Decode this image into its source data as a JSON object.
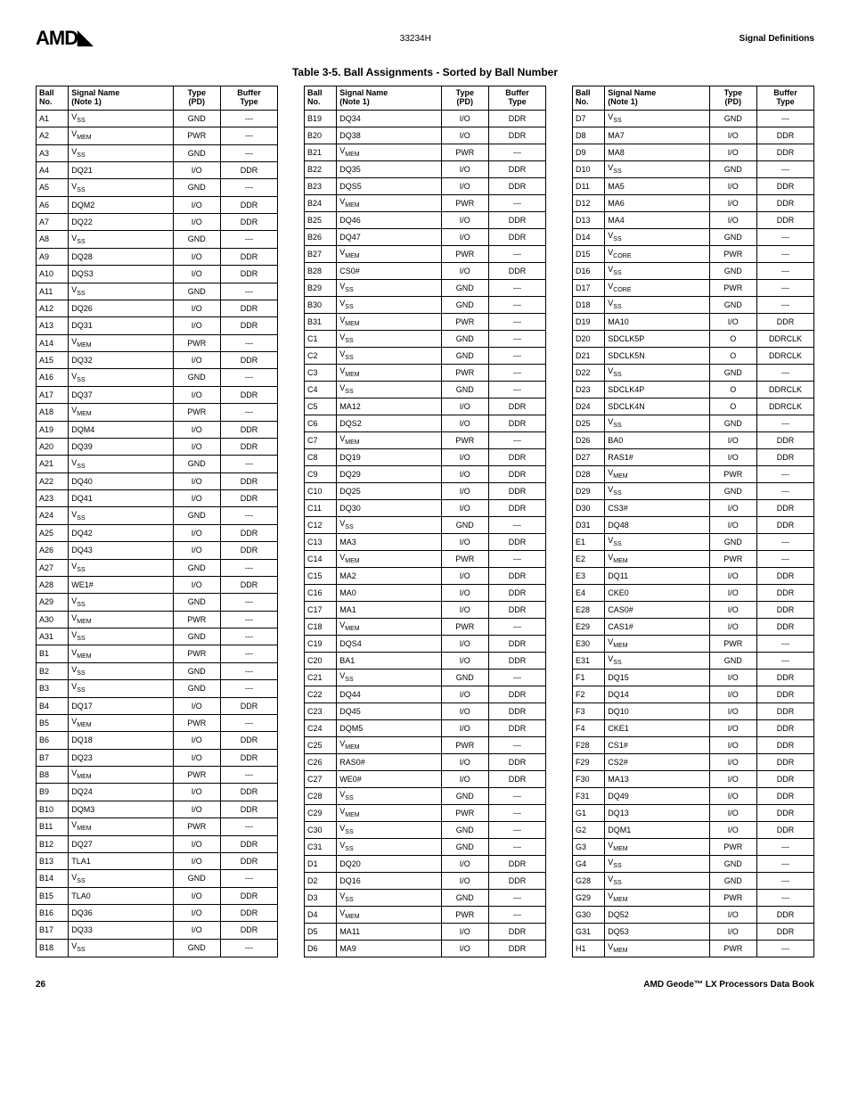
{
  "header": {
    "logo": "AMD",
    "docnum": "33234H",
    "section": "Signal Definitions"
  },
  "title": "Table 3-5.  Ball Assignments - Sorted by Ball Number",
  "columns": [
    "Ball No.",
    "Signal Name (Note 1)",
    "Type (PD)",
    "Buffer Type"
  ],
  "footer": {
    "page": "26",
    "book": "AMD Geode™ LX Processors Data Book"
  },
  "t1": [
    [
      "A1",
      "V_SS",
      "GND",
      "---"
    ],
    [
      "A2",
      "V_MEM",
      "PWR",
      "---"
    ],
    [
      "A3",
      "V_SS",
      "GND",
      "---"
    ],
    [
      "A4",
      "DQ21",
      "I/O",
      "DDR"
    ],
    [
      "A5",
      "V_SS",
      "GND",
      "---"
    ],
    [
      "A6",
      "DQM2",
      "I/O",
      "DDR"
    ],
    [
      "A7",
      "DQ22",
      "I/O",
      "DDR"
    ],
    [
      "A8",
      "V_SS",
      "GND",
      "---"
    ],
    [
      "A9",
      "DQ28",
      "I/O",
      "DDR"
    ],
    [
      "A10",
      "DQS3",
      "I/O",
      "DDR"
    ],
    [
      "A11",
      "V_SS",
      "GND",
      "---"
    ],
    [
      "A12",
      "DQ26",
      "I/O",
      "DDR"
    ],
    [
      "A13",
      "DQ31",
      "I/O",
      "DDR"
    ],
    [
      "A14",
      "V_MEM",
      "PWR",
      "---"
    ],
    [
      "A15",
      "DQ32",
      "I/O",
      "DDR"
    ],
    [
      "A16",
      "V_SS",
      "GND",
      "---"
    ],
    [
      "A17",
      "DQ37",
      "I/O",
      "DDR"
    ],
    [
      "A18",
      "V_MEM",
      "PWR",
      "---"
    ],
    [
      "A19",
      "DQM4",
      "I/O",
      "DDR"
    ],
    [
      "A20",
      "DQ39",
      "I/O",
      "DDR"
    ],
    [
      "A21",
      "V_SS",
      "GND",
      "---"
    ],
    [
      "A22",
      "DQ40",
      "I/O",
      "DDR"
    ],
    [
      "A23",
      "DQ41",
      "I/O",
      "DDR"
    ],
    [
      "A24",
      "V_SS",
      "GND",
      "---"
    ],
    [
      "A25",
      "DQ42",
      "I/O",
      "DDR"
    ],
    [
      "A26",
      "DQ43",
      "I/O",
      "DDR"
    ],
    [
      "A27",
      "V_SS",
      "GND",
      "---"
    ],
    [
      "A28",
      "WE1#",
      "I/O",
      "DDR"
    ],
    [
      "A29",
      "V_SS",
      "GND",
      "---"
    ],
    [
      "A30",
      "V_MEM",
      "PWR",
      "---"
    ],
    [
      "A31",
      "V_SS",
      "GND",
      "---"
    ],
    [
      "B1",
      "V_MEM",
      "PWR",
      "---"
    ],
    [
      "B2",
      "V_SS",
      "GND",
      "---"
    ],
    [
      "B3",
      "V_SS",
      "GND",
      "---"
    ],
    [
      "B4",
      "DQ17",
      "I/O",
      "DDR"
    ],
    [
      "B5",
      "V_MEM",
      "PWR",
      "---"
    ],
    [
      "B6",
      "DQ18",
      "I/O",
      "DDR"
    ],
    [
      "B7",
      "DQ23",
      "I/O",
      "DDR"
    ],
    [
      "B8",
      "V_MEM",
      "PWR",
      "---"
    ],
    [
      "B9",
      "DQ24",
      "I/O",
      "DDR"
    ],
    [
      "B10",
      "DQM3",
      "I/O",
      "DDR"
    ],
    [
      "B11",
      "V_MEM",
      "PWR",
      "---"
    ],
    [
      "B12",
      "DQ27",
      "I/O",
      "DDR"
    ],
    [
      "B13",
      "TLA1",
      "I/O",
      "DDR"
    ],
    [
      "B14",
      "V_SS",
      "GND",
      "---"
    ],
    [
      "B15",
      "TLA0",
      "I/O",
      "DDR"
    ],
    [
      "B16",
      "DQ36",
      "I/O",
      "DDR"
    ],
    [
      "B17",
      "DQ33",
      "I/O",
      "DDR"
    ],
    [
      "B18",
      "V_SS",
      "GND",
      "---"
    ]
  ],
  "t2": [
    [
      "B19",
      "DQ34",
      "I/O",
      "DDR"
    ],
    [
      "B20",
      "DQ38",
      "I/O",
      "DDR"
    ],
    [
      "B21",
      "V_MEM",
      "PWR",
      "---"
    ],
    [
      "B22",
      "DQ35",
      "I/O",
      "DDR"
    ],
    [
      "B23",
      "DQS5",
      "I/O",
      "DDR"
    ],
    [
      "B24",
      "V_MEM",
      "PWR",
      "---"
    ],
    [
      "B25",
      "DQ46",
      "I/O",
      "DDR"
    ],
    [
      "B26",
      "DQ47",
      "I/O",
      "DDR"
    ],
    [
      "B27",
      "V_MEM",
      "PWR",
      "---"
    ],
    [
      "B28",
      "CS0#",
      "I/O",
      "DDR"
    ],
    [
      "B29",
      "V_SS",
      "GND",
      "---"
    ],
    [
      "B30",
      "V_SS",
      "GND",
      "---"
    ],
    [
      "B31",
      "V_MEM",
      "PWR",
      "---"
    ],
    [
      "C1",
      "V_SS",
      "GND",
      "---"
    ],
    [
      "C2",
      "V_SS",
      "GND",
      "---"
    ],
    [
      "C3",
      "V_MEM",
      "PWR",
      "---"
    ],
    [
      "C4",
      "V_SS",
      "GND",
      "---"
    ],
    [
      "C5",
      "MA12",
      "I/O",
      "DDR"
    ],
    [
      "C6",
      "DQS2",
      "I/O",
      "DDR"
    ],
    [
      "C7",
      "V_MEM",
      "PWR",
      "---"
    ],
    [
      "C8",
      "DQ19",
      "I/O",
      "DDR"
    ],
    [
      "C9",
      "DQ29",
      "I/O",
      "DDR"
    ],
    [
      "C10",
      "DQ25",
      "I/O",
      "DDR"
    ],
    [
      "C11",
      "DQ30",
      "I/O",
      "DDR"
    ],
    [
      "C12",
      "V_SS",
      "GND",
      "---"
    ],
    [
      "C13",
      "MA3",
      "I/O",
      "DDR"
    ],
    [
      "C14",
      "V_MEM",
      "PWR",
      "---"
    ],
    [
      "C15",
      "MA2",
      "I/O",
      "DDR"
    ],
    [
      "C16",
      "MA0",
      "I/O",
      "DDR"
    ],
    [
      "C17",
      "MA1",
      "I/O",
      "DDR"
    ],
    [
      "C18",
      "V_MEM",
      "PWR",
      "---"
    ],
    [
      "C19",
      "DQS4",
      "I/O",
      "DDR"
    ],
    [
      "C20",
      "BA1",
      "I/O",
      "DDR"
    ],
    [
      "C21",
      "V_SS",
      "GND",
      "---"
    ],
    [
      "C22",
      "DQ44",
      "I/O",
      "DDR"
    ],
    [
      "C23",
      "DQ45",
      "I/O",
      "DDR"
    ],
    [
      "C24",
      "DQM5",
      "I/O",
      "DDR"
    ],
    [
      "C25",
      "V_MEM",
      "PWR",
      "---"
    ],
    [
      "C26",
      "RAS0#",
      "I/O",
      "DDR"
    ],
    [
      "C27",
      "WE0#",
      "I/O",
      "DDR"
    ],
    [
      "C28",
      "V_SS",
      "GND",
      "---"
    ],
    [
      "C29",
      "V_MEM",
      "PWR",
      "---"
    ],
    [
      "C30",
      "V_SS",
      "GND",
      "---"
    ],
    [
      "C31",
      "V_SS",
      "GND",
      "---"
    ],
    [
      "D1",
      "DQ20",
      "I/O",
      "DDR"
    ],
    [
      "D2",
      "DQ16",
      "I/O",
      "DDR"
    ],
    [
      "D3",
      "V_SS",
      "GND",
      "---"
    ],
    [
      "D4",
      "V_MEM",
      "PWR",
      "---"
    ],
    [
      "D5",
      "MA11",
      "I/O",
      "DDR"
    ],
    [
      "D6",
      "MA9",
      "I/O",
      "DDR"
    ]
  ],
  "t3": [
    [
      "D7",
      "V_SS",
      "GND",
      "---"
    ],
    [
      "D8",
      "MA7",
      "I/O",
      "DDR"
    ],
    [
      "D9",
      "MA8",
      "I/O",
      "DDR"
    ],
    [
      "D10",
      "V_SS",
      "GND",
      "---"
    ],
    [
      "D11",
      "MA5",
      "I/O",
      "DDR"
    ],
    [
      "D12",
      "MA6",
      "I/O",
      "DDR"
    ],
    [
      "D13",
      "MA4",
      "I/O",
      "DDR"
    ],
    [
      "D14",
      "V_SS",
      "GND",
      "---"
    ],
    [
      "D15",
      "V_CORE",
      "PWR",
      "---"
    ],
    [
      "D16",
      "V_SS",
      "GND",
      "---"
    ],
    [
      "D17",
      "V_CORE",
      "PWR",
      "---"
    ],
    [
      "D18",
      "V_SS",
      "GND",
      "---"
    ],
    [
      "D19",
      "MA10",
      "I/O",
      "DDR"
    ],
    [
      "D20",
      "SDCLK5P",
      "O",
      "DDRCLK"
    ],
    [
      "D21",
      "SDCLK5N",
      "O",
      "DDRCLK"
    ],
    [
      "D22",
      "V_SS",
      "GND",
      "---"
    ],
    [
      "D23",
      "SDCLK4P",
      "O",
      "DDRCLK"
    ],
    [
      "D24",
      "SDCLK4N",
      "O",
      "DDRCLK"
    ],
    [
      "D25",
      "V_SS",
      "GND",
      "---"
    ],
    [
      "D26",
      "BA0",
      "I/O",
      "DDR"
    ],
    [
      "D27",
      "RAS1#",
      "I/O",
      "DDR"
    ],
    [
      "D28",
      "V_MEM",
      "PWR",
      "---"
    ],
    [
      "D29",
      "V_SS",
      "GND",
      "---"
    ],
    [
      "D30",
      "CS3#",
      "I/O",
      "DDR"
    ],
    [
      "D31",
      "DQ48",
      "I/O",
      "DDR"
    ],
    [
      "E1",
      "V_SS",
      "GND",
      "---"
    ],
    [
      "E2",
      "V_MEM",
      "PWR",
      "---"
    ],
    [
      "E3",
      "DQ11",
      "I/O",
      "DDR"
    ],
    [
      "E4",
      "CKE0",
      "I/O",
      "DDR"
    ],
    [
      "E28",
      "CAS0#",
      "I/O",
      "DDR"
    ],
    [
      "E29",
      "CAS1#",
      "I/O",
      "DDR"
    ],
    [
      "E30",
      "V_MEM",
      "PWR",
      "---"
    ],
    [
      "E31",
      "V_SS",
      "GND",
      "---"
    ],
    [
      "F1",
      "DQ15",
      "I/O",
      "DDR"
    ],
    [
      "F2",
      "DQ14",
      "I/O",
      "DDR"
    ],
    [
      "F3",
      "DQ10",
      "I/O",
      "DDR"
    ],
    [
      "F4",
      "CKE1",
      "I/O",
      "DDR"
    ],
    [
      "F28",
      "CS1#",
      "I/O",
      "DDR"
    ],
    [
      "F29",
      "CS2#",
      "I/O",
      "DDR"
    ],
    [
      "F30",
      "MA13",
      "I/O",
      "DDR"
    ],
    [
      "F31",
      "DQ49",
      "I/O",
      "DDR"
    ],
    [
      "G1",
      "DQ13",
      "I/O",
      "DDR"
    ],
    [
      "G2",
      "DQM1",
      "I/O",
      "DDR"
    ],
    [
      "G3",
      "V_MEM",
      "PWR",
      "---"
    ],
    [
      "G4",
      "V_SS",
      "GND",
      "---"
    ],
    [
      "G28",
      "V_SS",
      "GND",
      "---"
    ],
    [
      "G29",
      "V_MEM",
      "PWR",
      "---"
    ],
    [
      "G30",
      "DQ52",
      "I/O",
      "DDR"
    ],
    [
      "G31",
      "DQ53",
      "I/O",
      "DDR"
    ],
    [
      "H1",
      "V_MEM",
      "PWR",
      "---"
    ]
  ]
}
